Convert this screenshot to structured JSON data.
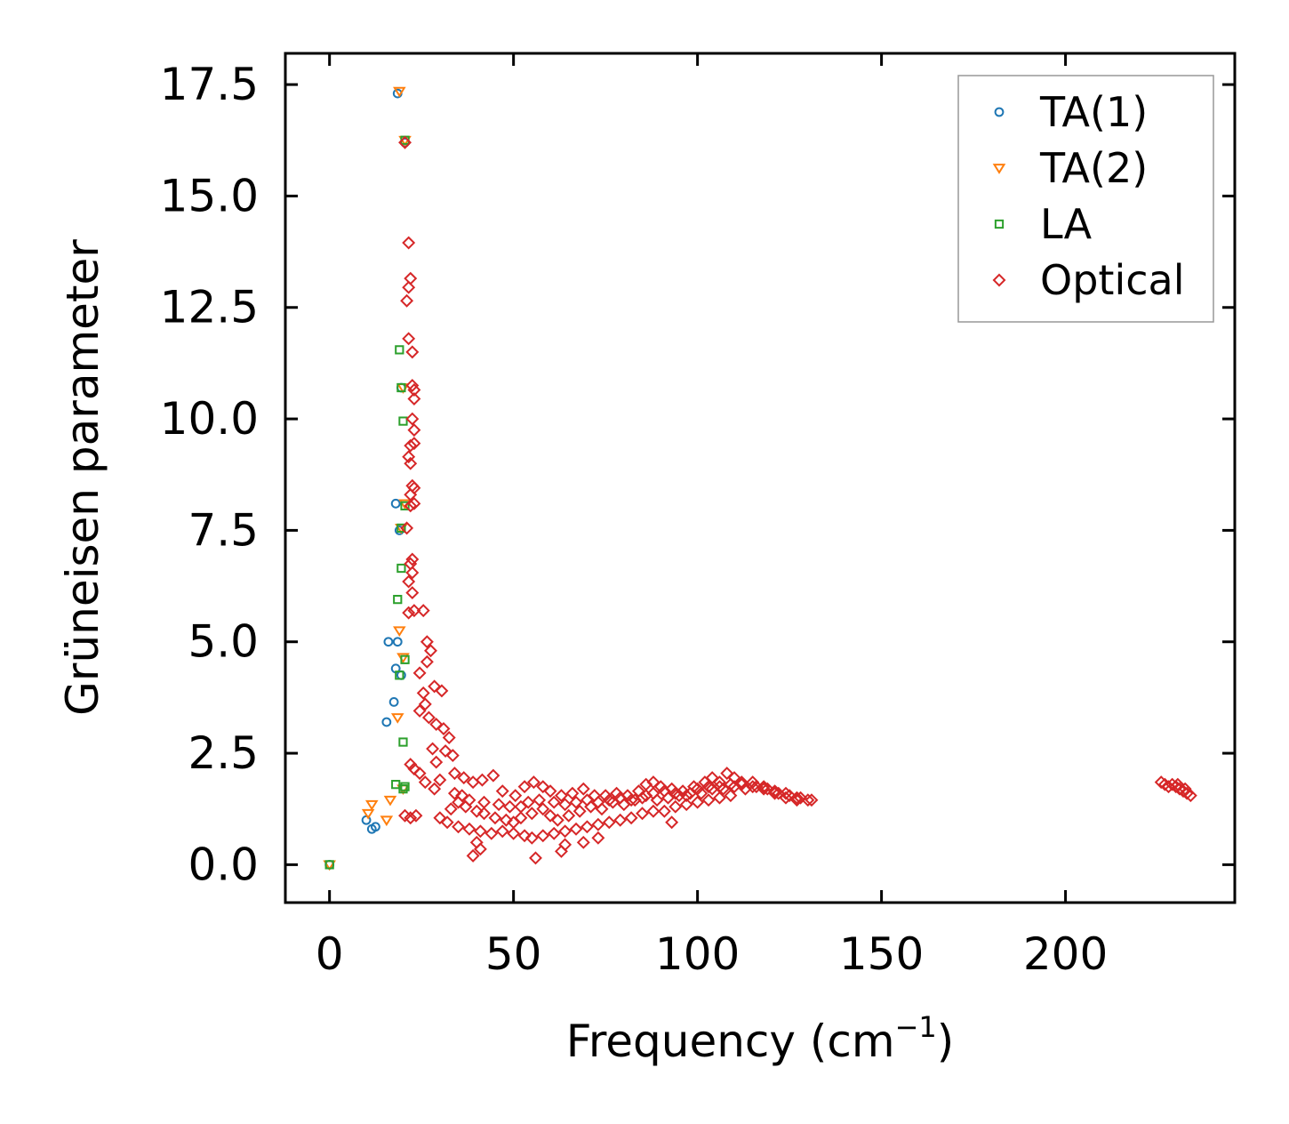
{
  "chart_data": {
    "type": "scatter",
    "xlabel": "Frequency (cm",
    "xlabel_sup": "−1",
    "xlabel_suffix": ")",
    "ylabel": "Grüneisen parameter",
    "xlim": [
      -12,
      246
    ],
    "ylim": [
      -0.85,
      18.2
    ],
    "xticks": [
      0,
      50,
      100,
      150,
      200
    ],
    "xtick_labels": [
      "0",
      "50",
      "100",
      "150",
      "200"
    ],
    "yticks": [
      0,
      2.5,
      5,
      7.5,
      10,
      12.5,
      15,
      17.5
    ],
    "ytick_labels": [
      "0.0",
      "2.5",
      "5.0",
      "7.5",
      "10.0",
      "12.5",
      "15.0",
      "17.5"
    ],
    "legend_position": "top-right",
    "series": [
      {
        "name": "TA(1)",
        "marker": "circle",
        "color": "#1f77b4",
        "points": [
          [
            0,
            0
          ],
          [
            10,
            1.0
          ],
          [
            11.5,
            0.8
          ],
          [
            12.5,
            0.85
          ],
          [
            15.5,
            3.2
          ],
          [
            16,
            5.0
          ],
          [
            17.5,
            3.65
          ],
          [
            18,
            4.4
          ],
          [
            18.5,
            5.0
          ],
          [
            18,
            8.1
          ],
          [
            19,
            7.5
          ],
          [
            18.5,
            17.3
          ],
          [
            19.5,
            10.7
          ],
          [
            20.5,
            16.2
          ],
          [
            19.5,
            4.25
          ]
        ]
      },
      {
        "name": "TA(2)",
        "marker": "triangle-down",
        "color": "#ff7f0e",
        "points": [
          [
            0,
            0
          ],
          [
            10.5,
            1.15
          ],
          [
            11.5,
            1.35
          ],
          [
            15.5,
            1.0
          ],
          [
            16.5,
            1.45
          ],
          [
            18.5,
            3.3
          ],
          [
            19,
            5.25
          ],
          [
            20,
            4.65
          ],
          [
            20,
            1.7
          ],
          [
            19.5,
            7.55
          ],
          [
            20.5,
            8.1
          ],
          [
            19,
            17.35
          ],
          [
            20.5,
            16.25
          ],
          [
            20,
            10.7
          ]
        ]
      },
      {
        "name": "LA",
        "marker": "square",
        "color": "#2ca02c",
        "points": [
          [
            0,
            0
          ],
          [
            18,
            1.8
          ],
          [
            20,
            1.7
          ],
          [
            20.5,
            1.75
          ],
          [
            20,
            2.75
          ],
          [
            19,
            4.25
          ],
          [
            20.5,
            4.6
          ],
          [
            18.5,
            5.95
          ],
          [
            19.5,
            6.65
          ],
          [
            19.5,
            7.55
          ],
          [
            20.5,
            8.05
          ],
          [
            20,
            9.95
          ],
          [
            19,
            11.55
          ],
          [
            19.5,
            10.7
          ],
          [
            20.5,
            16.25
          ]
        ]
      },
      {
        "name": "Optical",
        "marker": "diamond",
        "color": "#d62728",
        "points": [
          [
            20.5,
            16.2
          ],
          [
            21.5,
            13.95
          ],
          [
            22,
            13.15
          ],
          [
            21.5,
            12.95
          ],
          [
            21,
            12.65
          ],
          [
            21.5,
            11.8
          ],
          [
            22.5,
            11.5
          ],
          [
            22.5,
            10.75
          ],
          [
            23,
            10.65
          ],
          [
            23,
            10.45
          ],
          [
            22.5,
            10.0
          ],
          [
            23,
            9.75
          ],
          [
            22,
            9.4
          ],
          [
            23,
            9.45
          ],
          [
            21.5,
            9.15
          ],
          [
            22,
            9.0
          ],
          [
            22.5,
            8.5
          ],
          [
            23,
            8.45
          ],
          [
            22,
            8.3
          ],
          [
            23,
            8.1
          ],
          [
            22,
            8.05
          ],
          [
            21,
            7.55
          ],
          [
            22.5,
            6.85
          ],
          [
            22,
            6.75
          ],
          [
            22.5,
            6.55
          ],
          [
            21.5,
            6.35
          ],
          [
            22.5,
            6.1
          ],
          [
            23,
            5.7
          ],
          [
            21.5,
            5.65
          ],
          [
            25.5,
            5.7
          ],
          [
            26.5,
            5.0
          ],
          [
            27.5,
            4.8
          ],
          [
            26.5,
            4.55
          ],
          [
            24.5,
            4.3
          ],
          [
            28.5,
            4.0
          ],
          [
            25.5,
            3.85
          ],
          [
            30.5,
            3.9
          ],
          [
            26,
            3.6
          ],
          [
            24.5,
            3.45
          ],
          [
            27,
            3.3
          ],
          [
            29,
            3.15
          ],
          [
            31,
            3.05
          ],
          [
            32.5,
            2.85
          ],
          [
            28,
            2.6
          ],
          [
            31.5,
            2.55
          ],
          [
            33.5,
            2.45
          ],
          [
            29,
            2.3
          ],
          [
            22,
            2.25
          ],
          [
            23,
            2.15
          ],
          [
            24.5,
            2.05
          ],
          [
            26,
            1.85
          ],
          [
            28.5,
            1.7
          ],
          [
            30,
            1.9
          ],
          [
            34,
            2.05
          ],
          [
            36.5,
            1.95
          ],
          [
            39,
            1.85
          ],
          [
            41.5,
            1.9
          ],
          [
            44.5,
            2.0
          ],
          [
            47,
            1.65
          ],
          [
            50.5,
            1.55
          ],
          [
            53,
            1.75
          ],
          [
            55.5,
            1.85
          ],
          [
            58,
            1.75
          ],
          [
            60,
            1.65
          ],
          [
            63,
            1.55
          ],
          [
            66,
            1.6
          ],
          [
            69,
            1.7
          ],
          [
            72,
            1.55
          ],
          [
            75,
            1.55
          ],
          [
            78,
            1.6
          ],
          [
            81,
            1.55
          ],
          [
            84,
            1.65
          ],
          [
            86,
            1.8
          ],
          [
            88,
            1.85
          ],
          [
            90,
            1.75
          ],
          [
            93,
            1.7
          ],
          [
            96,
            1.65
          ],
          [
            99,
            1.75
          ],
          [
            102,
            1.85
          ],
          [
            104,
            1.95
          ],
          [
            106,
            1.85
          ],
          [
            108,
            2.05
          ],
          [
            110,
            1.95
          ],
          [
            112,
            1.85
          ],
          [
            115,
            1.85
          ],
          [
            118,
            1.75
          ],
          [
            121,
            1.65
          ],
          [
            124,
            1.6
          ],
          [
            127,
            1.5
          ],
          [
            130,
            1.45
          ],
          [
            131,
            1.45
          ],
          [
            33,
            1.25
          ],
          [
            35,
            1.4
          ],
          [
            37,
            1.3
          ],
          [
            40,
            1.2
          ],
          [
            42,
            1.15
          ],
          [
            45,
            1.05
          ],
          [
            48,
            1.0
          ],
          [
            50,
            0.95
          ],
          [
            52,
            1.05
          ],
          [
            55,
            1.15
          ],
          [
            58,
            1.25
          ],
          [
            60,
            1.1
          ],
          [
            62,
            1.0
          ],
          [
            65,
            1.1
          ],
          [
            68,
            1.2
          ],
          [
            71,
            1.3
          ],
          [
            74,
            1.25
          ],
          [
            77,
            1.4
          ],
          [
            80,
            1.35
          ],
          [
            83,
            1.45
          ],
          [
            86,
            1.55
          ],
          [
            89,
            1.45
          ],
          [
            92,
            1.5
          ],
          [
            95,
            1.55
          ],
          [
            98,
            1.6
          ],
          [
            101,
            1.6
          ],
          [
            104,
            1.7
          ],
          [
            107,
            1.7
          ],
          [
            110,
            1.75
          ],
          [
            113,
            1.7
          ],
          [
            116,
            1.75
          ],
          [
            119,
            1.7
          ],
          [
            122,
            1.6
          ],
          [
            125,
            1.55
          ],
          [
            128,
            1.5
          ],
          [
            20.5,
            1.1
          ],
          [
            22,
            1.05
          ],
          [
            23.5,
            1.1
          ],
          [
            30,
            1.05
          ],
          [
            32,
            0.95
          ],
          [
            35,
            0.85
          ],
          [
            38,
            0.8
          ],
          [
            41,
            0.75
          ],
          [
            44,
            0.7
          ],
          [
            47,
            0.75
          ],
          [
            50,
            0.7
          ],
          [
            53,
            0.65
          ],
          [
            55,
            0.6
          ],
          [
            58,
            0.65
          ],
          [
            61,
            0.7
          ],
          [
            64,
            0.75
          ],
          [
            67,
            0.8
          ],
          [
            70,
            0.85
          ],
          [
            73,
            0.9
          ],
          [
            76,
            0.95
          ],
          [
            79,
            1.0
          ],
          [
            82,
            1.05
          ],
          [
            85,
            1.15
          ],
          [
            88,
            1.2
          ],
          [
            91,
            1.2
          ],
          [
            94,
            1.3
          ],
          [
            97,
            1.35
          ],
          [
            100,
            1.4
          ],
          [
            103,
            1.45
          ],
          [
            106,
            1.5
          ],
          [
            109,
            1.55
          ],
          [
            39,
            0.2
          ],
          [
            40,
            0.5
          ],
          [
            41,
            0.35
          ],
          [
            56,
            0.15
          ],
          [
            63,
            0.3
          ],
          [
            64,
            0.45
          ],
          [
            69,
            0.5
          ],
          [
            73,
            0.6
          ],
          [
            93,
            0.95
          ],
          [
            34,
            1.6
          ],
          [
            36,
            1.55
          ],
          [
            38,
            1.45
          ],
          [
            42,
            1.4
          ],
          [
            46,
            1.35
          ],
          [
            49,
            1.3
          ],
          [
            52,
            1.3
          ],
          [
            54,
            1.4
          ],
          [
            57,
            1.45
          ],
          [
            61,
            1.4
          ],
          [
            64,
            1.35
          ],
          [
            67,
            1.4
          ],
          [
            70,
            1.45
          ],
          [
            73,
            1.4
          ],
          [
            76,
            1.45
          ],
          [
            79,
            1.5
          ],
          [
            82,
            1.45
          ],
          [
            85,
            1.5
          ],
          [
            88,
            1.6
          ],
          [
            91,
            1.65
          ],
          [
            94,
            1.6
          ],
          [
            97,
            1.55
          ],
          [
            100,
            1.7
          ],
          [
            103,
            1.75
          ],
          [
            106,
            1.75
          ],
          [
            109,
            1.8
          ],
          [
            112,
            1.8
          ],
          [
            115,
            1.75
          ],
          [
            118,
            1.7
          ],
          [
            121,
            1.6
          ],
          [
            124,
            1.5
          ],
          [
            127,
            1.45
          ],
          [
            226,
            1.85
          ],
          [
            227,
            1.8
          ],
          [
            228,
            1.75
          ],
          [
            229,
            1.8
          ],
          [
            230,
            1.75
          ],
          [
            231,
            1.7
          ],
          [
            232,
            1.65
          ],
          [
            233,
            1.6
          ],
          [
            234,
            1.55
          ],
          [
            230.5,
            1.8
          ],
          [
            232.5,
            1.7
          ]
        ]
      }
    ]
  }
}
